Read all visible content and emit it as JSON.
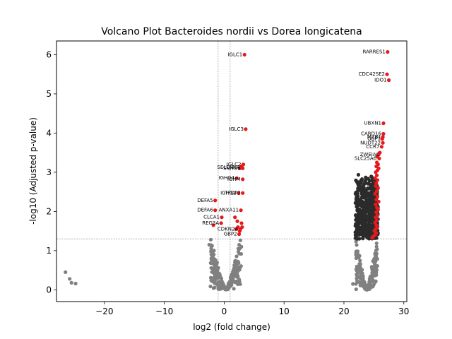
{
  "chart_data": {
    "type": "scatter",
    "title": "Volcano Plot Bacteroides nordii vs Dorea longicatena",
    "xlabel": "log2 (fold change)",
    "ylabel": "-log10 (Adjusted p-value)",
    "xlim": [
      -28,
      30.5
    ],
    "ylim": [
      -0.3,
      6.35
    ],
    "xticks": [
      -20,
      -10,
      0,
      10,
      20,
      30
    ],
    "yticks": [
      0,
      1,
      2,
      3,
      4,
      5,
      6
    ],
    "grid": false,
    "legend": "none",
    "thresholds": {
      "y": 1.3,
      "x": [
        -1,
        1
      ]
    },
    "colors": {
      "significant": "#e41a1c",
      "nonsignificant": "#808080",
      "threshold_line": "#808080"
    },
    "labeled_points": [
      {
        "label": "RARRES1",
        "x": 27.3,
        "y": 6.07
      },
      {
        "label": "CDC42SE2",
        "x": 27.2,
        "y": 5.5
      },
      {
        "label": "IDO1",
        "x": 27.5,
        "y": 5.35
      },
      {
        "label": "IGLC1",
        "x": 3.4,
        "y": 6.0
      },
      {
        "label": "IGLC3",
        "x": 3.6,
        "y": 4.1
      },
      {
        "label": "UBXN1",
        "x": 26.6,
        "y": 4.25
      },
      {
        "label": "CARD16",
        "x": 26.6,
        "y": 3.98
      },
      {
        "label": "GBP1",
        "x": 26.5,
        "y": 3.85
      },
      {
        "label": "MZB1",
        "x": 26.6,
        "y": 3.9
      },
      {
        "label": "NUDT22",
        "x": 26.5,
        "y": 3.75
      },
      {
        "label": "CCR7",
        "x": 26.3,
        "y": 3.65
      },
      {
        "label": "ZWEIAC",
        "x": 26.3,
        "y": 3.45
      },
      {
        "label": "SLC25A6",
        "x": 25.8,
        "y": 3.35
      },
      {
        "label": "IGLC2",
        "x": 3.2,
        "y": 3.2
      },
      {
        "label": "SELENNA",
        "x": 3.0,
        "y": 3.12
      },
      {
        "label": "SNHG6",
        "x": 3.1,
        "y": 3.1
      },
      {
        "label": "IGHG4",
        "x": 2.1,
        "y": 2.85
      },
      {
        "label": "IGHM",
        "x": 3.1,
        "y": 2.82
      },
      {
        "label": "IGHG2",
        "x": 2.4,
        "y": 2.47
      },
      {
        "label": "TFDP2",
        "x": 3.1,
        "y": 2.47
      },
      {
        "label": "DEFA5",
        "x": -1.5,
        "y": 2.28
      },
      {
        "label": "DEFA6",
        "x": -1.5,
        "y": 2.03
      },
      {
        "label": "ANXA11",
        "x": 2.8,
        "y": 2.03
      },
      {
        "label": "CLCA1",
        "x": -0.4,
        "y": 1.85
      },
      {
        "label": "REG3A",
        "x": -0.5,
        "y": 1.7
      },
      {
        "label": "CDKN2A",
        "x": 2.7,
        "y": 1.55
      },
      {
        "label": "GBP2",
        "x": 2.5,
        "y": 1.42
      }
    ],
    "significant_points": [
      {
        "x": 3.4,
        "y": 6.0
      },
      {
        "x": 3.6,
        "y": 4.1
      },
      {
        "x": 27.3,
        "y": 6.07
      },
      {
        "x": 27.2,
        "y": 5.5
      },
      {
        "x": 27.5,
        "y": 5.35
      },
      {
        "x": 26.6,
        "y": 4.25
      },
      {
        "x": 26.6,
        "y": 3.98
      },
      {
        "x": 26.5,
        "y": 3.9
      },
      {
        "x": 26.4,
        "y": 3.85
      },
      {
        "x": 26.5,
        "y": 3.75
      },
      {
        "x": 26.3,
        "y": 3.65
      },
      {
        "x": 26.0,
        "y": 3.5
      },
      {
        "x": 25.8,
        "y": 3.45
      },
      {
        "x": 25.6,
        "y": 3.4
      },
      {
        "x": 25.9,
        "y": 3.35
      },
      {
        "x": 25.5,
        "y": 3.25
      },
      {
        "x": 25.7,
        "y": 3.2
      },
      {
        "x": 25.4,
        "y": 3.15
      },
      {
        "x": 25.8,
        "y": 3.1
      },
      {
        "x": 25.6,
        "y": 3.05
      },
      {
        "x": 25.3,
        "y": 3.0
      },
      {
        "x": 25.5,
        "y": 2.92
      },
      {
        "x": 25.2,
        "y": 2.85
      },
      {
        "x": 25.6,
        "y": 2.8
      },
      {
        "x": 25.4,
        "y": 2.72
      },
      {
        "x": 25.3,
        "y": 2.65
      },
      {
        "x": 25.7,
        "y": 2.6
      },
      {
        "x": 25.5,
        "y": 2.52
      },
      {
        "x": 25.2,
        "y": 2.45
      },
      {
        "x": 25.6,
        "y": 2.38
      },
      {
        "x": 25.4,
        "y": 2.3
      },
      {
        "x": 25.8,
        "y": 2.25
      },
      {
        "x": 25.3,
        "y": 2.18
      },
      {
        "x": 25.5,
        "y": 2.1
      },
      {
        "x": 25.7,
        "y": 2.05
      },
      {
        "x": 25.4,
        "y": 1.98
      },
      {
        "x": 25.6,
        "y": 1.9
      },
      {
        "x": 25.3,
        "y": 1.85
      },
      {
        "x": 25.5,
        "y": 1.78
      },
      {
        "x": 25.2,
        "y": 1.72
      },
      {
        "x": 25.4,
        "y": 1.65
      },
      {
        "x": 25.6,
        "y": 1.6
      },
      {
        "x": 25.3,
        "y": 1.55
      },
      {
        "x": 25.1,
        "y": 1.5
      },
      {
        "x": 25.4,
        "y": 1.45
      },
      {
        "x": 25.2,
        "y": 1.4
      },
      {
        "x": 24.9,
        "y": 1.36
      },
      {
        "x": 24.7,
        "y": 1.33
      },
      {
        "x": 3.2,
        "y": 3.2
      },
      {
        "x": 3.0,
        "y": 3.12
      },
      {
        "x": 3.1,
        "y": 3.1
      },
      {
        "x": 2.6,
        "y": 3.1
      },
      {
        "x": 2.9,
        "y": 3.15
      },
      {
        "x": 2.1,
        "y": 2.85
      },
      {
        "x": 3.1,
        "y": 2.82
      },
      {
        "x": 2.4,
        "y": 2.47
      },
      {
        "x": 3.1,
        "y": 2.47
      },
      {
        "x": -1.5,
        "y": 2.28
      },
      {
        "x": -1.5,
        "y": 2.03
      },
      {
        "x": 2.8,
        "y": 2.03
      },
      {
        "x": -0.4,
        "y": 1.85
      },
      {
        "x": -0.5,
        "y": 1.7
      },
      {
        "x": 1.8,
        "y": 1.85
      },
      {
        "x": 2.2,
        "y": 1.75
      },
      {
        "x": 2.9,
        "y": 1.7
      },
      {
        "x": 2.7,
        "y": 1.55
      },
      {
        "x": 2.5,
        "y": 1.42
      },
      {
        "x": 2.3,
        "y": 1.6
      },
      {
        "x": 2.6,
        "y": 1.5
      },
      {
        "x": -1.8,
        "y": 1.65
      },
      {
        "x": 2.0,
        "y": 1.55
      },
      {
        "x": 3.0,
        "y": 1.6
      }
    ],
    "nonsignificant_clusters": [
      {
        "x_center": 0.3,
        "x_spread": 2.6,
        "y_max": 1.28,
        "count": 260
      },
      {
        "x_center": 23.8,
        "x_spread": 1.8,
        "y_max": 1.3,
        "count": 220
      }
    ],
    "significant_cluster": {
      "x_center": 23.8,
      "x_spread": 1.9,
      "y_min": 1.3,
      "y_max": 3.0,
      "count": 520
    },
    "nonsignificant_points": [
      {
        "x": -26.5,
        "y": 0.45
      },
      {
        "x": -25.8,
        "y": 0.28
      },
      {
        "x": -25.5,
        "y": 0.18
      },
      {
        "x": -24.8,
        "y": 0.16
      },
      {
        "x": 21.5,
        "y": 0.15
      },
      {
        "x": 22.0,
        "y": 0.15
      },
      {
        "x": 22.8,
        "y": 0.28
      },
      {
        "x": 23.2,
        "y": 0.35
      },
      {
        "x": -2.5,
        "y": 1.15
      },
      {
        "x": -1.7,
        "y": 1.0
      },
      {
        "x": 2.5,
        "y": 1.15
      },
      {
        "x": 2.6,
        "y": 1.05
      }
    ]
  }
}
